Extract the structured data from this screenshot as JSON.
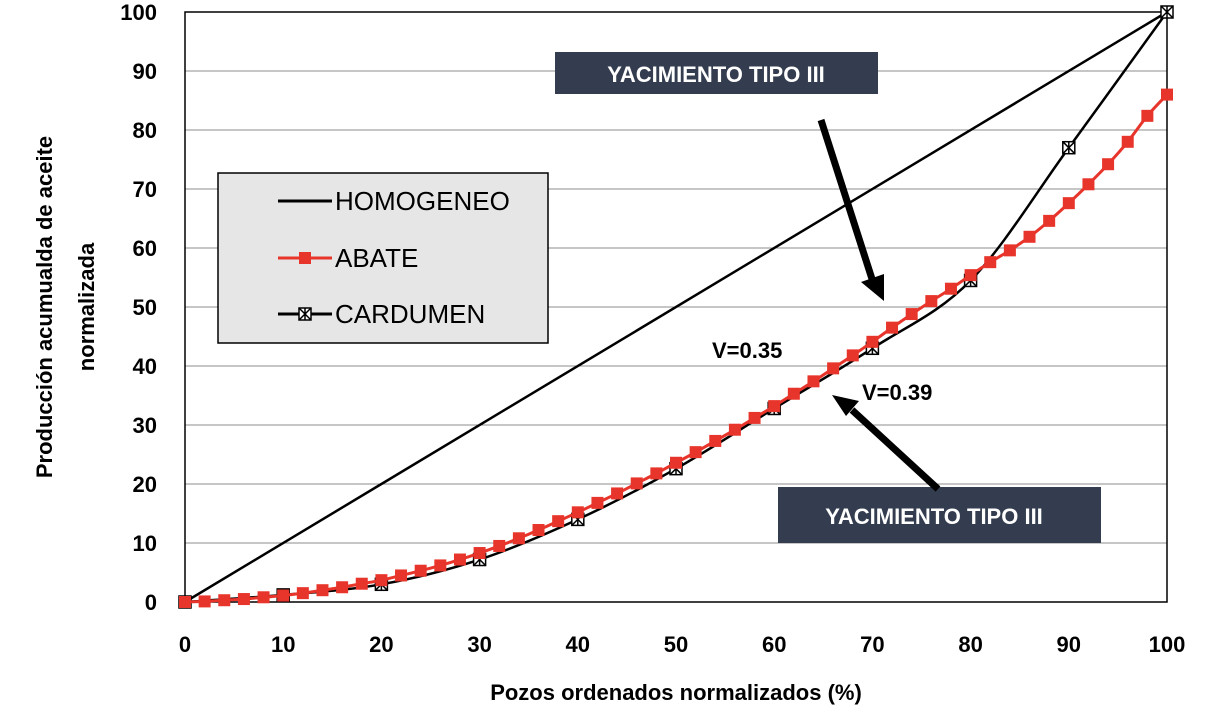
{
  "chart_data": {
    "type": "line",
    "xlabel": "Pozos ordenados normalizados (%)",
    "ylabel_lines": [
      "Producción acumualda de aceite",
      "normalizada"
    ],
    "xlim": [
      0,
      100
    ],
    "ylim": [
      0,
      100
    ],
    "xticks": [
      "0",
      "10",
      "20",
      "30",
      "40",
      "50",
      "60",
      "70",
      "80",
      "90",
      "100"
    ],
    "yticks": [
      "0",
      "10",
      "20",
      "30",
      "40",
      "50",
      "60",
      "70",
      "80",
      "90",
      "100"
    ],
    "grid": "horizontal",
    "legend_position": "left",
    "series": [
      {
        "name": "HOMOGENEO",
        "color": "#000000",
        "marker": "none",
        "x": [
          0,
          100
        ],
        "y": [
          0,
          100
        ]
      },
      {
        "name": "ABATE",
        "color": "#e8352b",
        "marker": "square",
        "x": [
          0,
          2,
          4,
          6,
          8,
          10,
          12,
          14,
          16,
          18,
          20,
          22,
          24,
          26,
          28,
          30,
          32,
          34,
          36,
          38,
          40,
          42,
          44,
          46,
          48,
          50,
          52,
          54,
          56,
          58,
          60,
          62,
          64,
          66,
          68,
          70,
          72,
          74,
          76,
          78,
          80,
          82,
          84,
          86,
          88,
          90,
          92,
          94,
          96,
          98,
          100
        ],
        "y": [
          0,
          0.1,
          0.3,
          0.5,
          0.8,
          1.1,
          1.5,
          2.0,
          2.5,
          3.1,
          3.7,
          4.5,
          5.3,
          6.2,
          7.2,
          8.3,
          9.5,
          10.8,
          12.2,
          13.7,
          15.2,
          16.8,
          18.4,
          20.1,
          21.8,
          23.6,
          25.4,
          27.3,
          29.2,
          31.2,
          33.2,
          35.3,
          37.4,
          39.6,
          41.8,
          44.1,
          46.5,
          48.8,
          51.0,
          53.1,
          55.4,
          57.6,
          59.6,
          61.9,
          64.6,
          67.6,
          70.8,
          74.2,
          78.0,
          82.4,
          86.0
        ]
      },
      {
        "name": "CARDUMEN",
        "color": "#000000",
        "marker": "star-box",
        "x": [
          0,
          10,
          20,
          30,
          40,
          50,
          60,
          70,
          80,
          90,
          100
        ],
        "y": [
          0,
          1.2,
          3.0,
          7.2,
          14.0,
          22.6,
          32.8,
          43.0,
          54.5,
          77.0,
          100
        ]
      }
    ],
    "annotations": [
      {
        "text": "V=0.35"
      },
      {
        "text": "V=0.39"
      },
      {
        "text": "YACIMIENTO TIPO III"
      },
      {
        "text": "YACIMIENTO TIPO III"
      }
    ]
  }
}
